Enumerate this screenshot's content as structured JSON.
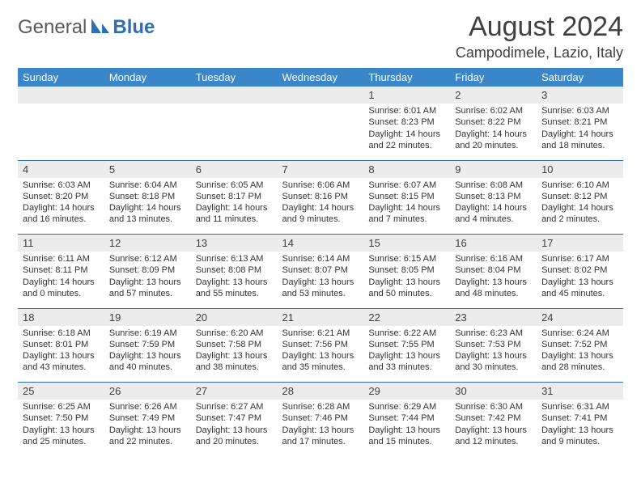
{
  "brand": {
    "general": "General",
    "blue": "Blue"
  },
  "title": "August 2024",
  "location": "Campodimele, Lazio, Italy",
  "colors": {
    "header_bg": "#3b86c8",
    "header_text": "#ffffff",
    "daynum_bg": "#ececec",
    "divider": "#2c6fb5",
    "body_text": "#333333"
  },
  "day_names": [
    "Sunday",
    "Monday",
    "Tuesday",
    "Wednesday",
    "Thursday",
    "Friday",
    "Saturday"
  ],
  "weeks": [
    {
      "nums": [
        "",
        "",
        "",
        "",
        "1",
        "2",
        "3"
      ],
      "cells": [
        null,
        null,
        null,
        null,
        {
          "sr": "Sunrise: 6:01 AM",
          "ss": "Sunset: 8:23 PM",
          "d1": "Daylight: 14 hours",
          "d2": "and 22 minutes."
        },
        {
          "sr": "Sunrise: 6:02 AM",
          "ss": "Sunset: 8:22 PM",
          "d1": "Daylight: 14 hours",
          "d2": "and 20 minutes."
        },
        {
          "sr": "Sunrise: 6:03 AM",
          "ss": "Sunset: 8:21 PM",
          "d1": "Daylight: 14 hours",
          "d2": "and 18 minutes."
        }
      ]
    },
    {
      "nums": [
        "4",
        "5",
        "6",
        "7",
        "8",
        "9",
        "10"
      ],
      "cells": [
        {
          "sr": "Sunrise: 6:03 AM",
          "ss": "Sunset: 8:20 PM",
          "d1": "Daylight: 14 hours",
          "d2": "and 16 minutes."
        },
        {
          "sr": "Sunrise: 6:04 AM",
          "ss": "Sunset: 8:18 PM",
          "d1": "Daylight: 14 hours",
          "d2": "and 13 minutes."
        },
        {
          "sr": "Sunrise: 6:05 AM",
          "ss": "Sunset: 8:17 PM",
          "d1": "Daylight: 14 hours",
          "d2": "and 11 minutes."
        },
        {
          "sr": "Sunrise: 6:06 AM",
          "ss": "Sunset: 8:16 PM",
          "d1": "Daylight: 14 hours",
          "d2": "and 9 minutes."
        },
        {
          "sr": "Sunrise: 6:07 AM",
          "ss": "Sunset: 8:15 PM",
          "d1": "Daylight: 14 hours",
          "d2": "and 7 minutes."
        },
        {
          "sr": "Sunrise: 6:08 AM",
          "ss": "Sunset: 8:13 PM",
          "d1": "Daylight: 14 hours",
          "d2": "and 4 minutes."
        },
        {
          "sr": "Sunrise: 6:10 AM",
          "ss": "Sunset: 8:12 PM",
          "d1": "Daylight: 14 hours",
          "d2": "and 2 minutes."
        }
      ]
    },
    {
      "nums": [
        "11",
        "12",
        "13",
        "14",
        "15",
        "16",
        "17"
      ],
      "cells": [
        {
          "sr": "Sunrise: 6:11 AM",
          "ss": "Sunset: 8:11 PM",
          "d1": "Daylight: 14 hours",
          "d2": "and 0 minutes."
        },
        {
          "sr": "Sunrise: 6:12 AM",
          "ss": "Sunset: 8:09 PM",
          "d1": "Daylight: 13 hours",
          "d2": "and 57 minutes."
        },
        {
          "sr": "Sunrise: 6:13 AM",
          "ss": "Sunset: 8:08 PM",
          "d1": "Daylight: 13 hours",
          "d2": "and 55 minutes."
        },
        {
          "sr": "Sunrise: 6:14 AM",
          "ss": "Sunset: 8:07 PM",
          "d1": "Daylight: 13 hours",
          "d2": "and 53 minutes."
        },
        {
          "sr": "Sunrise: 6:15 AM",
          "ss": "Sunset: 8:05 PM",
          "d1": "Daylight: 13 hours",
          "d2": "and 50 minutes."
        },
        {
          "sr": "Sunrise: 6:16 AM",
          "ss": "Sunset: 8:04 PM",
          "d1": "Daylight: 13 hours",
          "d2": "and 48 minutes."
        },
        {
          "sr": "Sunrise: 6:17 AM",
          "ss": "Sunset: 8:02 PM",
          "d1": "Daylight: 13 hours",
          "d2": "and 45 minutes."
        }
      ]
    },
    {
      "nums": [
        "18",
        "19",
        "20",
        "21",
        "22",
        "23",
        "24"
      ],
      "cells": [
        {
          "sr": "Sunrise: 6:18 AM",
          "ss": "Sunset: 8:01 PM",
          "d1": "Daylight: 13 hours",
          "d2": "and 43 minutes."
        },
        {
          "sr": "Sunrise: 6:19 AM",
          "ss": "Sunset: 7:59 PM",
          "d1": "Daylight: 13 hours",
          "d2": "and 40 minutes."
        },
        {
          "sr": "Sunrise: 6:20 AM",
          "ss": "Sunset: 7:58 PM",
          "d1": "Daylight: 13 hours",
          "d2": "and 38 minutes."
        },
        {
          "sr": "Sunrise: 6:21 AM",
          "ss": "Sunset: 7:56 PM",
          "d1": "Daylight: 13 hours",
          "d2": "and 35 minutes."
        },
        {
          "sr": "Sunrise: 6:22 AM",
          "ss": "Sunset: 7:55 PM",
          "d1": "Daylight: 13 hours",
          "d2": "and 33 minutes."
        },
        {
          "sr": "Sunrise: 6:23 AM",
          "ss": "Sunset: 7:53 PM",
          "d1": "Daylight: 13 hours",
          "d2": "and 30 minutes."
        },
        {
          "sr": "Sunrise: 6:24 AM",
          "ss": "Sunset: 7:52 PM",
          "d1": "Daylight: 13 hours",
          "d2": "and 28 minutes."
        }
      ]
    },
    {
      "nums": [
        "25",
        "26",
        "27",
        "28",
        "29",
        "30",
        "31"
      ],
      "cells": [
        {
          "sr": "Sunrise: 6:25 AM",
          "ss": "Sunset: 7:50 PM",
          "d1": "Daylight: 13 hours",
          "d2": "and 25 minutes."
        },
        {
          "sr": "Sunrise: 6:26 AM",
          "ss": "Sunset: 7:49 PM",
          "d1": "Daylight: 13 hours",
          "d2": "and 22 minutes."
        },
        {
          "sr": "Sunrise: 6:27 AM",
          "ss": "Sunset: 7:47 PM",
          "d1": "Daylight: 13 hours",
          "d2": "and 20 minutes."
        },
        {
          "sr": "Sunrise: 6:28 AM",
          "ss": "Sunset: 7:46 PM",
          "d1": "Daylight: 13 hours",
          "d2": "and 17 minutes."
        },
        {
          "sr": "Sunrise: 6:29 AM",
          "ss": "Sunset: 7:44 PM",
          "d1": "Daylight: 13 hours",
          "d2": "and 15 minutes."
        },
        {
          "sr": "Sunrise: 6:30 AM",
          "ss": "Sunset: 7:42 PM",
          "d1": "Daylight: 13 hours",
          "d2": "and 12 minutes."
        },
        {
          "sr": "Sunrise: 6:31 AM",
          "ss": "Sunset: 7:41 PM",
          "d1": "Daylight: 13 hours",
          "d2": "and 9 minutes."
        }
      ]
    }
  ]
}
